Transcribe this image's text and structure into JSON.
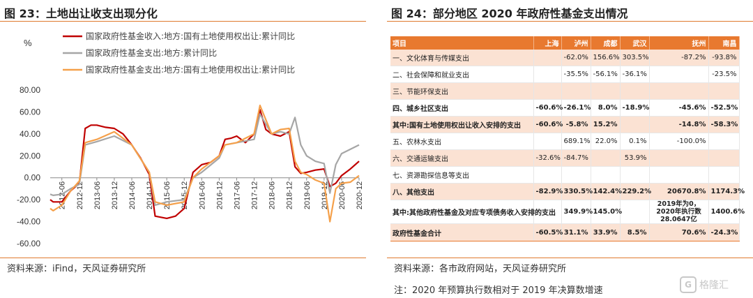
{
  "left": {
    "figure_title": "图 23：土地出让收支出现分化",
    "source": "资料来源：iFind，天风证券研究所"
  },
  "right": {
    "figure_title": "图 24：部分地区 2020 年政府性基金支出情况",
    "source": "资料来源：各市政府网站，天风证券研究所",
    "note": "注：2020 年预算执行数相对于 2019 年决算数增速"
  },
  "table": {
    "headers": [
      "项目",
      "上海",
      "泸州",
      "成都",
      "武汉",
      "抚州",
      "南昌"
    ],
    "rows": [
      {
        "cells": [
          "一、文化体育与传媒支出",
          "",
          "-62.0%",
          "156.6%",
          "303.5%",
          "-87.2%",
          "-93.8%"
        ],
        "shade": true,
        "bold": false
      },
      {
        "cells": [
          "二、社会保障和就业支出",
          "",
          "-35.5%",
          "-56.1%",
          "-36.1%",
          "",
          "-23.5%"
        ],
        "shade": false,
        "bold": false
      },
      {
        "cells": [
          "三、节能环保支出",
          "",
          "",
          "",
          "",
          "",
          ""
        ],
        "shade": true,
        "bold": false
      },
      {
        "cells": [
          "四、城乡社区支出",
          "-60.6%",
          "-26.1%",
          "8.0%",
          "-18.9%",
          "-45.6%",
          "-52.5%"
        ],
        "shade": false,
        "bold": true
      },
      {
        "cells": [
          "其中:国有土地使用权出让收入安排的支出",
          "-60.6%",
          "-5.8%",
          "15.2%",
          "",
          "-14.8%",
          "-58.3%"
        ],
        "shade": true,
        "bold": true
      },
      {
        "cells": [
          "五、农林水支出",
          "",
          "689.1%",
          "22.0%",
          "0.1%",
          "-100.0%",
          ""
        ],
        "shade": false,
        "bold": false
      },
      {
        "cells": [
          "六、交通运输支出",
          "-32.6%",
          "-84.7%",
          "",
          "53.9%",
          "",
          ""
        ],
        "shade": true,
        "bold": false
      },
      {
        "cells": [
          "七、资源勘探信息等支出",
          "",
          "",
          "",
          "",
          "",
          ""
        ],
        "shade": false,
        "bold": false
      },
      {
        "cells": [
          "八、其他支出",
          "-82.9%",
          "330.5%",
          "142.4%",
          "229.2%",
          "20670.8%",
          "1174.3%"
        ],
        "shade": true,
        "bold": true
      },
      {
        "cells": [
          "其中:其他政府性基金及对应专项债务收入安排的支出",
          "",
          "349.9%",
          "145.0%",
          "",
          "2019年为0，2020年执行数28.0647亿",
          "1400.6%"
        ],
        "shade": false,
        "bold": true
      },
      {
        "cells": [
          "政府性基金合计",
          "-60.5%",
          "31.1%",
          "33.9%",
          "8.5%",
          "70.6%",
          "-24.3%"
        ],
        "shade": true,
        "bold": true
      }
    ]
  },
  "chart_data": {
    "type": "line",
    "title": "",
    "xlabel": "",
    "ylabel": "%",
    "ylim": [
      -60,
      80
    ],
    "yticks": [
      "80.00",
      "60.00",
      "40.00",
      "20.00",
      "0.00",
      "-20.00",
      "-40.00",
      "-60.00"
    ],
    "ytick_values": [
      80,
      60,
      40,
      20,
      0,
      -20,
      -40,
      -60
    ],
    "xticks": [
      "2012-06",
      "2012-12",
      "2013-06",
      "2013-12",
      "2014-06",
      "2014-12",
      "2015-06",
      "2015-12",
      "2016-06",
      "2016-12",
      "2017-06",
      "2017-12",
      "2018-06",
      "2018-12",
      "2019-06",
      "2019-12",
      "2020-06",
      "2020-12"
    ],
    "x_range": [
      "2012-02",
      "2020-12"
    ],
    "legend": "top-left",
    "grid": false,
    "series": [
      {
        "name": "国家政府性基金收入:地方:国有土地使用权出让:累计同比",
        "color": "#c00000",
        "points": [
          [
            "2012-02",
            -20
          ],
          [
            "2012-03",
            -22
          ],
          [
            "2012-06",
            -22
          ],
          [
            "2012-09",
            -12
          ],
          [
            "2012-12",
            -5
          ],
          [
            "2013-02",
            45
          ],
          [
            "2013-04",
            48
          ],
          [
            "2013-06",
            48
          ],
          [
            "2013-09",
            46
          ],
          [
            "2013-12",
            45
          ],
          [
            "2014-03",
            40
          ],
          [
            "2014-06",
            30
          ],
          [
            "2014-09",
            18
          ],
          [
            "2014-12",
            3
          ],
          [
            "2015-02",
            -35
          ],
          [
            "2015-04",
            -36
          ],
          [
            "2015-06",
            -37
          ],
          [
            "2015-09",
            -35
          ],
          [
            "2015-12",
            -28
          ],
          [
            "2016-03",
            5
          ],
          [
            "2016-06",
            12
          ],
          [
            "2016-09",
            14
          ],
          [
            "2016-12",
            20
          ],
          [
            "2017-02",
            35
          ],
          [
            "2017-04",
            36
          ],
          [
            "2017-06",
            38
          ],
          [
            "2017-09",
            32
          ],
          [
            "2017-12",
            40
          ],
          [
            "2018-02",
            62
          ],
          [
            "2018-04",
            44
          ],
          [
            "2018-06",
            40
          ],
          [
            "2018-09",
            38
          ],
          [
            "2018-12",
            42
          ],
          [
            "2019-02",
            10
          ],
          [
            "2019-04",
            4
          ],
          [
            "2019-06",
            5
          ],
          [
            "2019-09",
            7
          ],
          [
            "2019-12",
            8
          ],
          [
            "2020-02",
            -8
          ],
          [
            "2020-04",
            -5
          ],
          [
            "2020-06",
            2
          ],
          [
            "2020-09",
            8
          ],
          [
            "2020-12",
            15
          ]
        ]
      },
      {
        "name": "国家政府性基金支出:地方:累计同比",
        "color": "#a6a6a6",
        "points": [
          [
            "2012-02",
            -15
          ],
          [
            "2012-03",
            -16
          ],
          [
            "2012-06",
            -15
          ],
          [
            "2012-09",
            -10
          ],
          [
            "2012-12",
            -6
          ],
          [
            "2013-02",
            30
          ],
          [
            "2013-06",
            33
          ],
          [
            "2013-12",
            38
          ],
          [
            "2014-06",
            30
          ],
          [
            "2014-12",
            5
          ],
          [
            "2015-02",
            -25
          ],
          [
            "2015-06",
            -22
          ],
          [
            "2015-12",
            -20
          ],
          [
            "2016-03",
            0
          ],
          [
            "2016-06",
            5
          ],
          [
            "2016-12",
            18
          ],
          [
            "2017-02",
            30
          ],
          [
            "2017-06",
            32
          ],
          [
            "2017-12",
            35
          ],
          [
            "2018-02",
            58
          ],
          [
            "2018-06",
            40
          ],
          [
            "2018-09",
            42
          ],
          [
            "2018-12",
            40
          ],
          [
            "2019-02",
            55
          ],
          [
            "2019-04",
            30
          ],
          [
            "2019-06",
            20
          ],
          [
            "2019-09",
            15
          ],
          [
            "2019-12",
            13
          ],
          [
            "2020-02",
            -14
          ],
          [
            "2020-04",
            12
          ],
          [
            "2020-06",
            22
          ],
          [
            "2020-09",
            26
          ],
          [
            "2020-12",
            30
          ]
        ]
      },
      {
        "name": "国家政府性基金支出:地方:国有土地使用权出让:累计同比",
        "color": "#f5a04a",
        "points": [
          [
            "2012-02",
            -28
          ],
          [
            "2012-03",
            -30
          ],
          [
            "2012-06",
            -25
          ],
          [
            "2012-09",
            -12
          ],
          [
            "2012-12",
            -3
          ],
          [
            "2013-02",
            32
          ],
          [
            "2013-06",
            35
          ],
          [
            "2013-12",
            42
          ],
          [
            "2014-06",
            30
          ],
          [
            "2014-12",
            5
          ],
          [
            "2015-02",
            -22
          ],
          [
            "2015-06",
            -25
          ],
          [
            "2015-12",
            -22
          ],
          [
            "2016-03",
            0
          ],
          [
            "2016-06",
            8
          ],
          [
            "2016-12",
            20
          ],
          [
            "2017-02",
            30
          ],
          [
            "2017-06",
            32
          ],
          [
            "2017-12",
            40
          ],
          [
            "2018-02",
            66
          ],
          [
            "2018-06",
            40
          ],
          [
            "2018-09",
            44
          ],
          [
            "2018-12",
            45
          ],
          [
            "2019-02",
            15
          ],
          [
            "2019-04",
            5
          ],
          [
            "2019-06",
            3
          ],
          [
            "2019-09",
            -2
          ],
          [
            "2019-12",
            -5
          ],
          [
            "2020-02",
            -40
          ],
          [
            "2020-04",
            -10
          ],
          [
            "2020-06",
            -5
          ],
          [
            "2020-09",
            -4
          ],
          [
            "2020-12",
            2
          ]
        ]
      }
    ]
  },
  "watermark": {
    "text": "格隆汇",
    "badge": "G"
  }
}
